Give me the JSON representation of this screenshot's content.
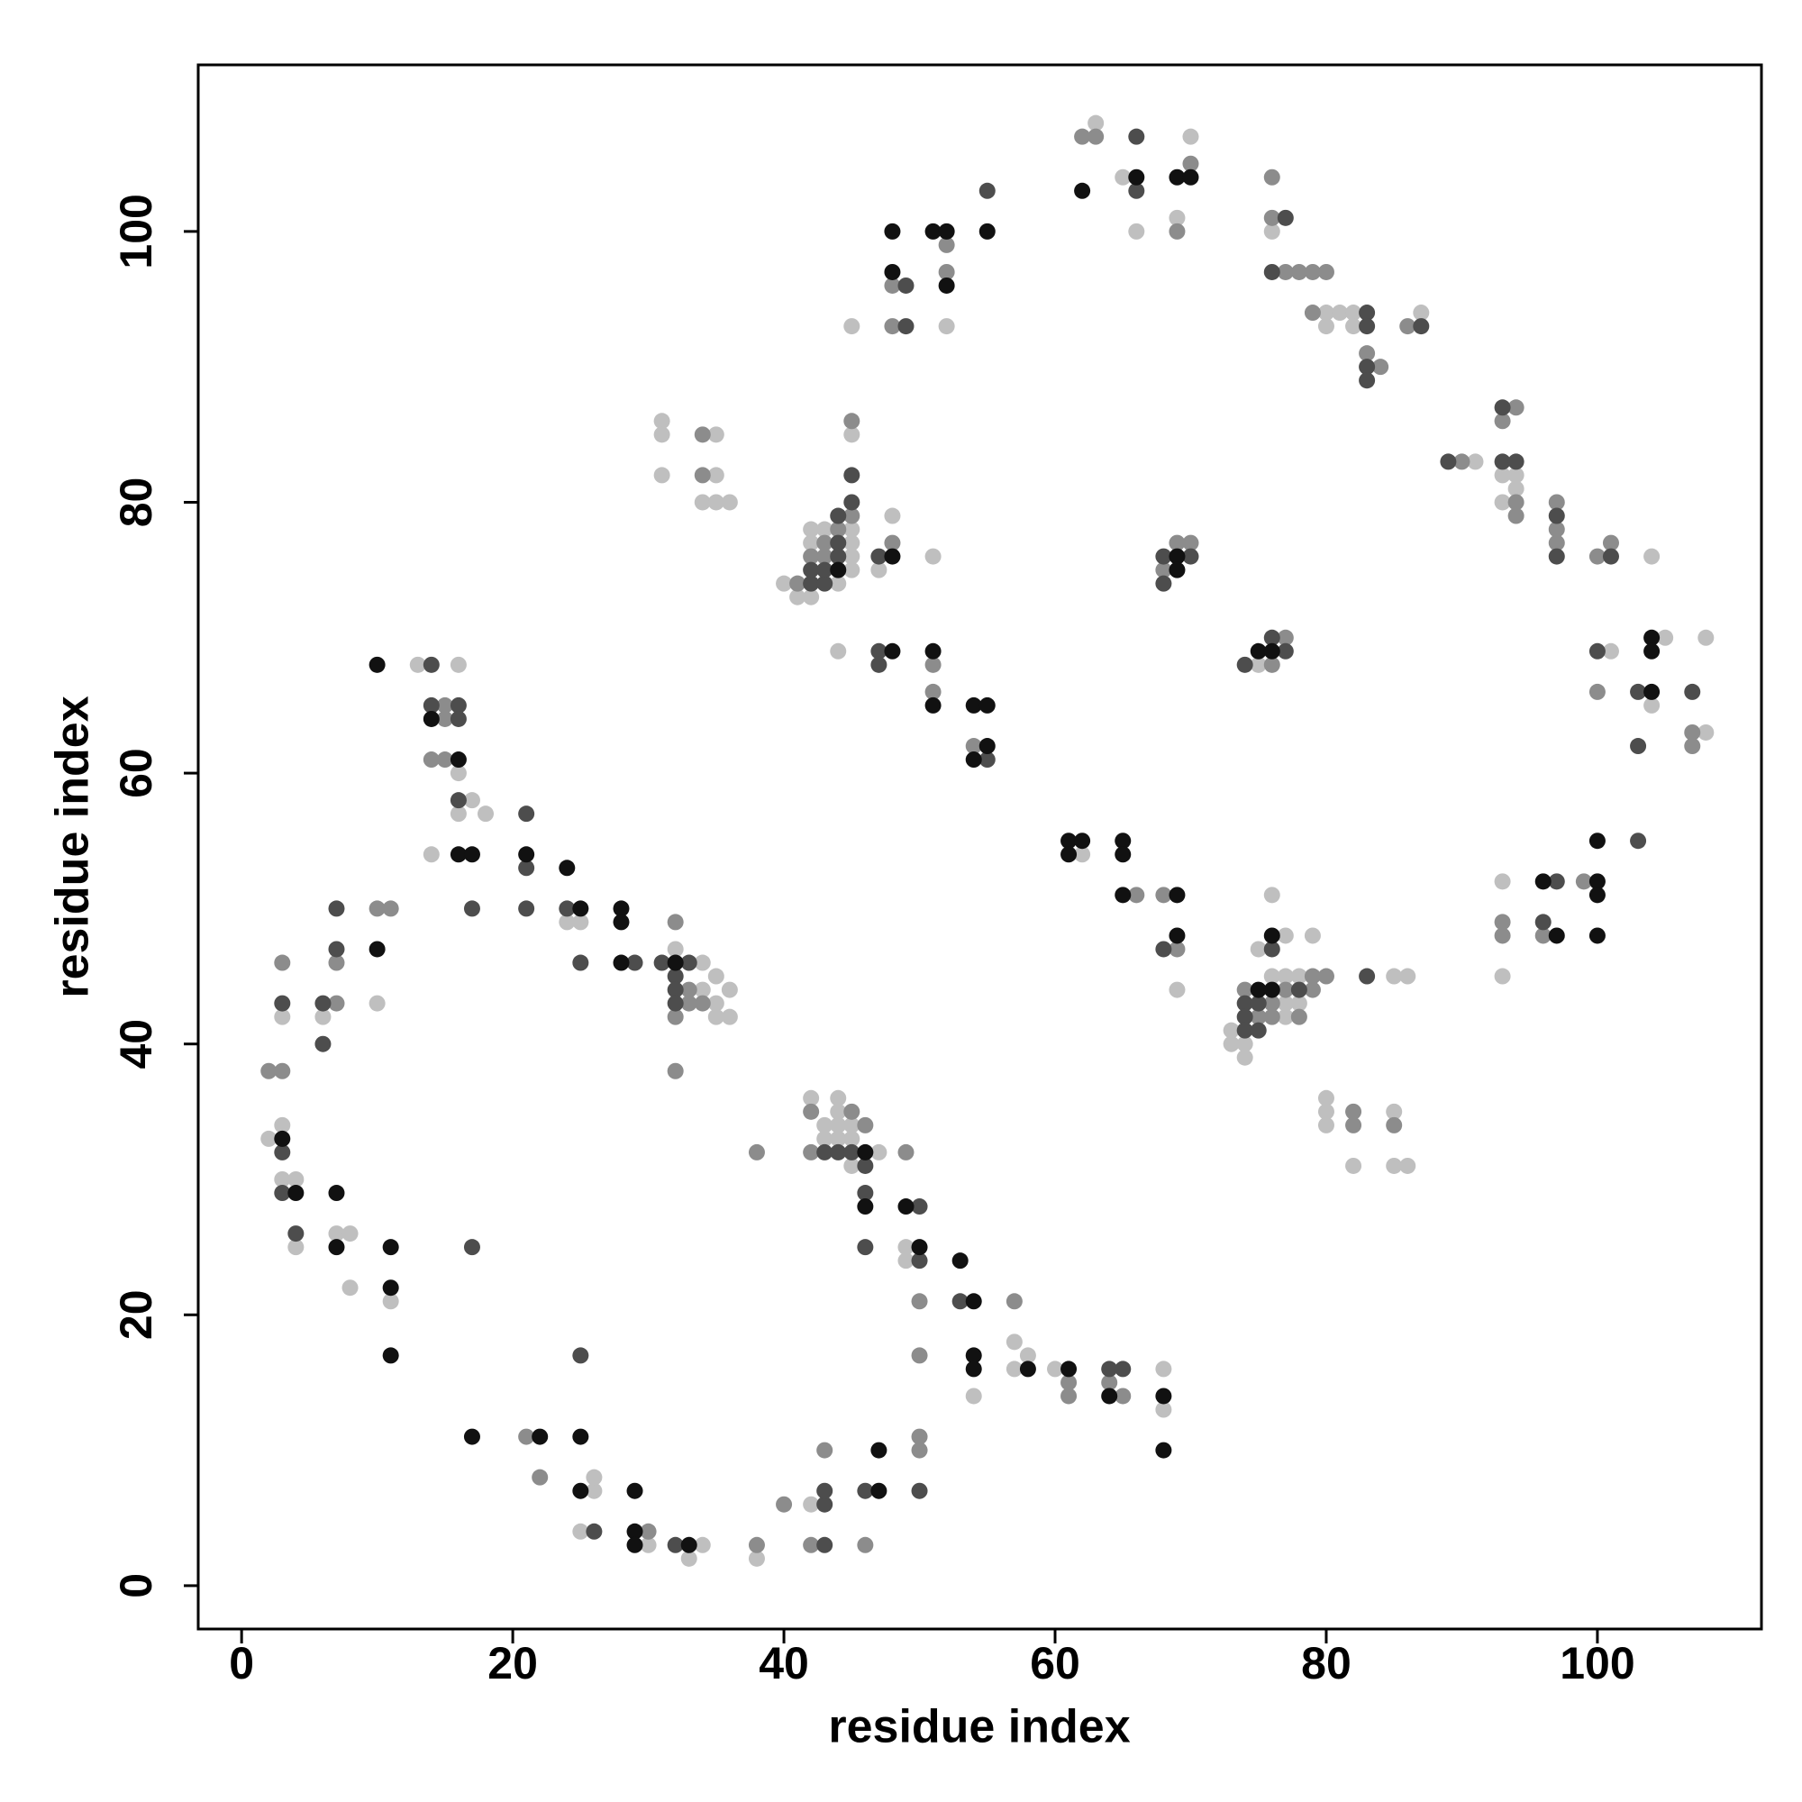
{
  "chart_data": {
    "type": "scatter",
    "x_label": "residue index",
    "y_label": "residue index",
    "xlim": [
      -3.2,
      112.1
    ],
    "ylim": [
      -3.2,
      112.3
    ],
    "xticks": [
      0,
      20,
      40,
      60,
      80,
      100
    ],
    "yticks": [
      0,
      20,
      40,
      60,
      80,
      100
    ],
    "grid": false,
    "series": [
      {
        "color": "#bfbfbf",
        "x": [
          3,
          2,
          3,
          3,
          4,
          4,
          6,
          7,
          8,
          8,
          10,
          11,
          13,
          16,
          16,
          17,
          16,
          18,
          14,
          24,
          25,
          32,
          34,
          34,
          35,
          35,
          36,
          35,
          36,
          26,
          26,
          25,
          30,
          34,
          33,
          38,
          42,
          42,
          44,
          44,
          43,
          44,
          45,
          43,
          44,
          45,
          47,
          45,
          49,
          49,
          57,
          58,
          57,
          54,
          60,
          68,
          68,
          40,
          41,
          42,
          42,
          42,
          43,
          45,
          45,
          45,
          45,
          44,
          45,
          48,
          47,
          51,
          44,
          31,
          31,
          31,
          35,
          35,
          34,
          35,
          36,
          45,
          52,
          63,
          65,
          66,
          70,
          69,
          76,
          80,
          81,
          82,
          80,
          82,
          87,
          91,
          93,
          94,
          94,
          93,
          104,
          101,
          105,
          108,
          104,
          108,
          93,
          93,
          75,
          62,
          69,
          76,
          77,
          79,
          75,
          76,
          77,
          78,
          85,
          86,
          77,
          78,
          77,
          73,
          73,
          74,
          74,
          80,
          80,
          80,
          85,
          82,
          85,
          86
        ],
        "values": [
          42,
          33,
          34,
          30,
          30,
          25,
          42,
          26,
          26,
          22,
          43,
          21,
          68,
          68,
          60,
          58,
          57,
          57,
          54,
          49,
          49,
          47,
          46,
          44,
          45,
          43,
          44,
          42,
          42,
          7,
          8,
          4,
          3,
          3,
          2,
          2,
          6,
          36,
          36,
          35,
          34,
          34,
          34,
          33,
          33,
          33,
          32,
          31,
          25,
          24,
          18,
          17,
          16,
          14,
          16,
          16,
          13,
          74,
          73,
          73,
          77,
          78,
          78,
          78,
          77,
          76,
          75,
          74,
          85,
          79,
          75,
          76,
          69,
          86,
          85,
          82,
          85,
          82,
          80,
          80,
          80,
          93,
          93,
          108,
          104,
          100,
          107,
          101,
          100,
          94,
          94,
          94,
          93,
          93,
          94,
          83,
          82,
          82,
          81,
          80,
          76,
          69,
          70,
          70,
          65,
          63,
          52,
          45,
          68,
          54,
          44,
          51,
          48,
          48,
          47,
          45,
          45,
          45,
          45,
          45,
          43,
          43,
          42,
          41,
          40,
          40,
          39,
          36,
          35,
          34,
          35,
          31,
          31,
          31
        ]
      },
      {
        "color": "#8c8c8c",
        "x": [
          2,
          3,
          3,
          7,
          7,
          10,
          11,
          15,
          15,
          14,
          15,
          32,
          33,
          32,
          33,
          34,
          32,
          21,
          22,
          30,
          38,
          38,
          40,
          43,
          42,
          46,
          42,
          45,
          46,
          42,
          49,
          50,
          57,
          50,
          61,
          61,
          64,
          65,
          50,
          50,
          41,
          42,
          44,
          43,
          43,
          45,
          45,
          48,
          51,
          51,
          54,
          34,
          34,
          48,
          52,
          52,
          48,
          62,
          63,
          70,
          69,
          76,
          76,
          77,
          78,
          79,
          80,
          79,
          83,
          84,
          86,
          90,
          94,
          93,
          94,
          94,
          97,
          97,
          97,
          100,
          101,
          100,
          107,
          107,
          99,
          96,
          93,
          93,
          69,
          70,
          68,
          77,
          76,
          66,
          68,
          69,
          74,
          77,
          79,
          79,
          80,
          76,
          75,
          76,
          78,
          82,
          82,
          85
        ],
        "values": [
          38,
          38,
          46,
          43,
          46,
          50,
          50,
          65,
          64,
          61,
          61,
          49,
          44,
          42,
          43,
          43,
          38,
          11,
          8,
          4,
          3,
          32,
          6,
          10,
          3,
          3,
          35,
          35,
          34,
          32,
          32,
          21,
          21,
          17,
          15,
          14,
          15,
          14,
          11,
          10,
          74,
          76,
          78,
          77,
          76,
          79,
          86,
          77,
          68,
          66,
          62,
          85,
          82,
          96,
          99,
          97,
          93,
          107,
          107,
          105,
          100,
          104,
          101,
          97,
          97,
          97,
          97,
          94,
          91,
          90,
          93,
          83,
          87,
          86,
          80,
          79,
          80,
          78,
          77,
          76,
          77,
          66,
          63,
          62,
          52,
          48,
          49,
          48,
          77,
          77,
          75,
          70,
          68,
          51,
          51,
          47,
          44,
          44,
          44,
          45,
          45,
          43,
          42,
          42,
          42,
          35,
          34,
          34
        ]
      },
      {
        "color": "#4d4d4d",
        "x": [
          3,
          3,
          3,
          4,
          6,
          6,
          7,
          7,
          14,
          14,
          16,
          16,
          16,
          17,
          17,
          21,
          21,
          21,
          24,
          25,
          29,
          31,
          32,
          33,
          32,
          32,
          25,
          26,
          32,
          43,
          43,
          43,
          46,
          43,
          44,
          45,
          46,
          46,
          46,
          50,
          50,
          53,
          64,
          65,
          50,
          42,
          42,
          43,
          44,
          43,
          44,
          44,
          45,
          45,
          47,
          47,
          47,
          55,
          49,
          49,
          55,
          66,
          66,
          77,
          76,
          83,
          83,
          83,
          83,
          87,
          89,
          93,
          93,
          94,
          97,
          97,
          101,
          100,
          103,
          107,
          103,
          103,
          97,
          96,
          68,
          70,
          68,
          74,
          76,
          77,
          68,
          76,
          78,
          83,
          74,
          75,
          74,
          74,
          75
        ],
        "values": [
          43,
          32,
          29,
          26,
          43,
          40,
          50,
          47,
          68,
          65,
          65,
          64,
          58,
          50,
          25,
          57,
          53,
          50,
          50,
          46,
          46,
          46,
          45,
          46,
          44,
          43,
          17,
          4,
          3,
          6,
          7,
          3,
          7,
          32,
          32,
          32,
          31,
          29,
          25,
          28,
          24,
          21,
          16,
          16,
          7,
          74,
          75,
          74,
          77,
          75,
          76,
          79,
          80,
          82,
          76,
          69,
          68,
          61,
          96,
          93,
          103,
          103,
          107,
          101,
          97,
          94,
          93,
          90,
          89,
          93,
          83,
          87,
          83,
          83,
          79,
          76,
          76,
          69,
          66,
          66,
          62,
          55,
          52,
          49,
          76,
          76,
          74,
          68,
          70,
          69,
          47,
          47,
          44,
          45,
          43,
          43,
          42,
          41,
          41
        ]
      },
      {
        "color": "#111111",
        "x": [
          3,
          4,
          7,
          7,
          10,
          10,
          11,
          11,
          11,
          14,
          16,
          16,
          17,
          21,
          24,
          25,
          28,
          28,
          28,
          32,
          17,
          22,
          25,
          25,
          29,
          29,
          29,
          33,
          46,
          46,
          49,
          50,
          53,
          54,
          54,
          54,
          58,
          61,
          64,
          68,
          68,
          47,
          47,
          44,
          48,
          48,
          51,
          51,
          54,
          55,
          55,
          54,
          48,
          51,
          52,
          48,
          52,
          55,
          62,
          66,
          69,
          70,
          104,
          104,
          104,
          100,
          100,
          100,
          100,
          96,
          97,
          69,
          69,
          75,
          76,
          61,
          62,
          61,
          65,
          65,
          65,
          69,
          69,
          76,
          75,
          76
        ],
        "values": [
          33,
          29,
          29,
          25,
          68,
          47,
          25,
          22,
          17,
          64,
          61,
          54,
          54,
          54,
          53,
          50,
          50,
          49,
          46,
          46,
          11,
          11,
          11,
          7,
          7,
          4,
          3,
          3,
          32,
          28,
          28,
          25,
          24,
          21,
          17,
          16,
          16,
          16,
          14,
          14,
          10,
          7,
          10,
          75,
          76,
          69,
          69,
          65,
          65,
          65,
          62,
          61,
          100,
          100,
          100,
          97,
          96,
          100,
          103,
          104,
          104,
          104,
          70,
          69,
          66,
          55,
          52,
          51,
          48,
          52,
          48,
          76,
          75,
          69,
          69,
          55,
          55,
          54,
          55,
          54,
          51,
          51,
          48,
          48,
          44,
          44
        ]
      }
    ]
  }
}
